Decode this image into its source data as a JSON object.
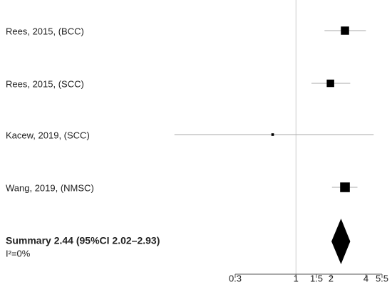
{
  "chart_data": {
    "type": "forest",
    "studies": [
      {
        "label": "Rees, 2015, (BCC)",
        "estimate": 2.64,
        "lower": 1.76,
        "upper": 4.0,
        "weight": 30
      },
      {
        "label": "Rees, 2015, (SCC)",
        "estimate": 1.98,
        "lower": 1.36,
        "upper": 2.93,
        "weight": 25
      },
      {
        "label": "Kacew, 2019, (SCC)",
        "estimate": 0.63,
        "lower": 0.09,
        "upper": 4.66,
        "weight": 3
      },
      {
        "label": "Wang, 2019, (NMSC)",
        "estimate": 2.64,
        "lower": 2.04,
        "upper": 3.38,
        "weight": 42
      }
    ],
    "summary": {
      "label": "Summary 2.44 (95%CI 2.02–2.93)",
      "estimate": 2.44,
      "lower": 2.02,
      "upper": 2.93,
      "heterogeneity": "I²=0%"
    },
    "log_scale": true,
    "reference": 1,
    "xlim": [
      0.3,
      5.5
    ],
    "xticks": [
      0.3,
      1,
      1.5,
      2,
      4,
      5.5
    ],
    "color": "#000000",
    "ci_color": "#aaaaaa"
  }
}
